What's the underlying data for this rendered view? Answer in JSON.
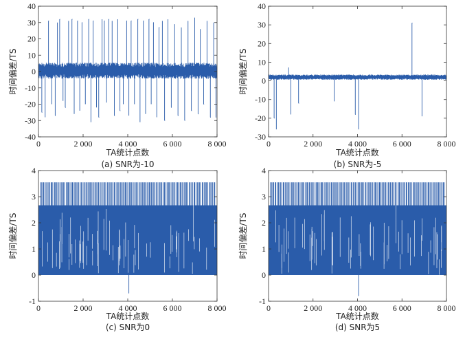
{
  "chart_data": [
    {
      "type": "line",
      "id": "a",
      "caption": "(a) SNR为-10",
      "xlabel": "TA统计点数",
      "ylabel": "时间偏差/TS",
      "xlim": [
        0,
        8000
      ],
      "ylim": [
        -40,
        40
      ],
      "xticks": [
        0,
        2000,
        4000,
        6000,
        8000
      ],
      "xtick_labels": [
        "0",
        "2 000",
        "4 000",
        "6 000",
        "8 000"
      ],
      "yticks": [
        -40,
        -30,
        -20,
        -10,
        0,
        10,
        20,
        30,
        40
      ],
      "ytick_labels": [
        "-40",
        "-30",
        "-20",
        "-10",
        "0",
        "10",
        "20",
        "30",
        "40"
      ],
      "color": "#2a5caa",
      "series": [
        {
          "name": "时间偏差",
          "baseline_band": [
            -3,
            4
          ],
          "spikes": [
            [
              150,
              -25
            ],
            [
              300,
              -28
            ],
            [
              450,
              31
            ],
            [
              600,
              -20
            ],
            [
              750,
              -27
            ],
            [
              850,
              30
            ],
            [
              950,
              32
            ],
            [
              1100,
              -18
            ],
            [
              1200,
              -22
            ],
            [
              1350,
              31
            ],
            [
              1500,
              32
            ],
            [
              1600,
              -26
            ],
            [
              1750,
              31
            ],
            [
              1850,
              -24
            ],
            [
              1950,
              30
            ],
            [
              2100,
              -20
            ],
            [
              2250,
              32
            ],
            [
              2350,
              -31
            ],
            [
              2450,
              31
            ],
            [
              2600,
              -22
            ],
            [
              2700,
              -28
            ],
            [
              2850,
              32
            ],
            [
              2950,
              31
            ],
            [
              3050,
              -19
            ],
            [
              3150,
              32
            ],
            [
              3300,
              31
            ],
            [
              3400,
              -27
            ],
            [
              3550,
              32
            ],
            [
              3650,
              -24
            ],
            [
              3800,
              -20
            ],
            [
              3950,
              31
            ],
            [
              4050,
              -27
            ],
            [
              4150,
              31
            ],
            [
              4300,
              -20
            ],
            [
              4450,
              32
            ],
            [
              4550,
              -31
            ],
            [
              4700,
              31
            ],
            [
              4800,
              -26
            ],
            [
              4950,
              32
            ],
            [
              5050,
              -20
            ],
            [
              5150,
              30
            ],
            [
              5300,
              -28
            ],
            [
              5400,
              27
            ],
            [
              5550,
              31
            ],
            [
              5650,
              -30
            ],
            [
              5800,
              32
            ],
            [
              5950,
              -22
            ],
            [
              6100,
              29
            ],
            [
              6250,
              -27
            ],
            [
              6400,
              27
            ],
            [
              6550,
              -30
            ],
            [
              6700,
              31
            ],
            [
              6850,
              -24
            ],
            [
              7000,
              33
            ],
            [
              7150,
              -26
            ],
            [
              7250,
              26
            ],
            [
              7400,
              -20
            ],
            [
              7550,
              31
            ],
            [
              7700,
              -28
            ],
            [
              7850,
              30
            ],
            [
              7950,
              -28
            ]
          ]
        }
      ]
    },
    {
      "type": "line",
      "id": "b",
      "caption": "(b) SNR为-5",
      "xlabel": "TA统计点数",
      "ylabel": "时间偏差/TS",
      "xlim": [
        0,
        8000
      ],
      "ylim": [
        -30,
        40
      ],
      "xticks": [
        0,
        2000,
        4000,
        6000,
        8000
      ],
      "xtick_labels": [
        "0",
        "2 000",
        "4 000",
        "6 000",
        "8 000"
      ],
      "yticks": [
        -30,
        -20,
        -10,
        0,
        10,
        20,
        30,
        40
      ],
      "ytick_labels": [
        "-30",
        "-20",
        "-10",
        "0",
        "10",
        "20",
        "30",
        "40"
      ],
      "color": "#2a5caa",
      "series": [
        {
          "name": "时间偏差",
          "baseline_band": [
            1,
            3
          ],
          "spikes": [
            [
              250,
              -20
            ],
            [
              350,
              -26
            ],
            [
              900,
              7
            ],
            [
              1000,
              -18
            ],
            [
              1350,
              -12
            ],
            [
              2950,
              -11
            ],
            [
              3900,
              -18
            ],
            [
              4050,
              -26
            ],
            [
              6450,
              31
            ],
            [
              6900,
              -19
            ]
          ]
        }
      ]
    },
    {
      "type": "line",
      "id": "c",
      "caption": "(c) SNR为0",
      "xlabel": "TA统计点数",
      "ylabel": "时间偏差/TS",
      "xlim": [
        0,
        8000
      ],
      "ylim": [
        -1,
        4
      ],
      "xticks": [
        0,
        2000,
        4000,
        6000,
        8000
      ],
      "xtick_labels": [
        "0",
        "2 000",
        "4 000",
        "6 000",
        "8 000"
      ],
      "yticks": [
        -1,
        0,
        1,
        2,
        3,
        4
      ],
      "ytick_labels": [
        "-1",
        "0",
        "1",
        "2",
        "3",
        "4"
      ],
      "color": "#2a5caa",
      "series": [
        {
          "name": "时间偏差",
          "baseline_band": [
            0,
            2.67
          ],
          "upper_spike_value": 3.55,
          "lower_spike": [
            4050,
            -0.7
          ]
        }
      ]
    },
    {
      "type": "line",
      "id": "d",
      "caption": "(d) SNR为5",
      "xlabel": "TA统计点数",
      "ylabel": "时间偏差/TS",
      "xlim": [
        0,
        8000
      ],
      "ylim": [
        -1,
        4
      ],
      "xticks": [
        0,
        2000,
        4000,
        6000,
        8000
      ],
      "xtick_labels": [
        "0",
        "2 000",
        "4 000",
        "6 000",
        "8 000"
      ],
      "yticks": [
        -1,
        0,
        1,
        2,
        3,
        4
      ],
      "ytick_labels": [
        "-1",
        "0",
        "1",
        "2",
        "3",
        "4"
      ],
      "color": "#2a5caa",
      "series": [
        {
          "name": "时间偏差",
          "baseline_band": [
            0,
            2.67
          ],
          "upper_spike_value": 3.55,
          "lower_spike": [
            4050,
            -0.8
          ]
        }
      ]
    }
  ]
}
